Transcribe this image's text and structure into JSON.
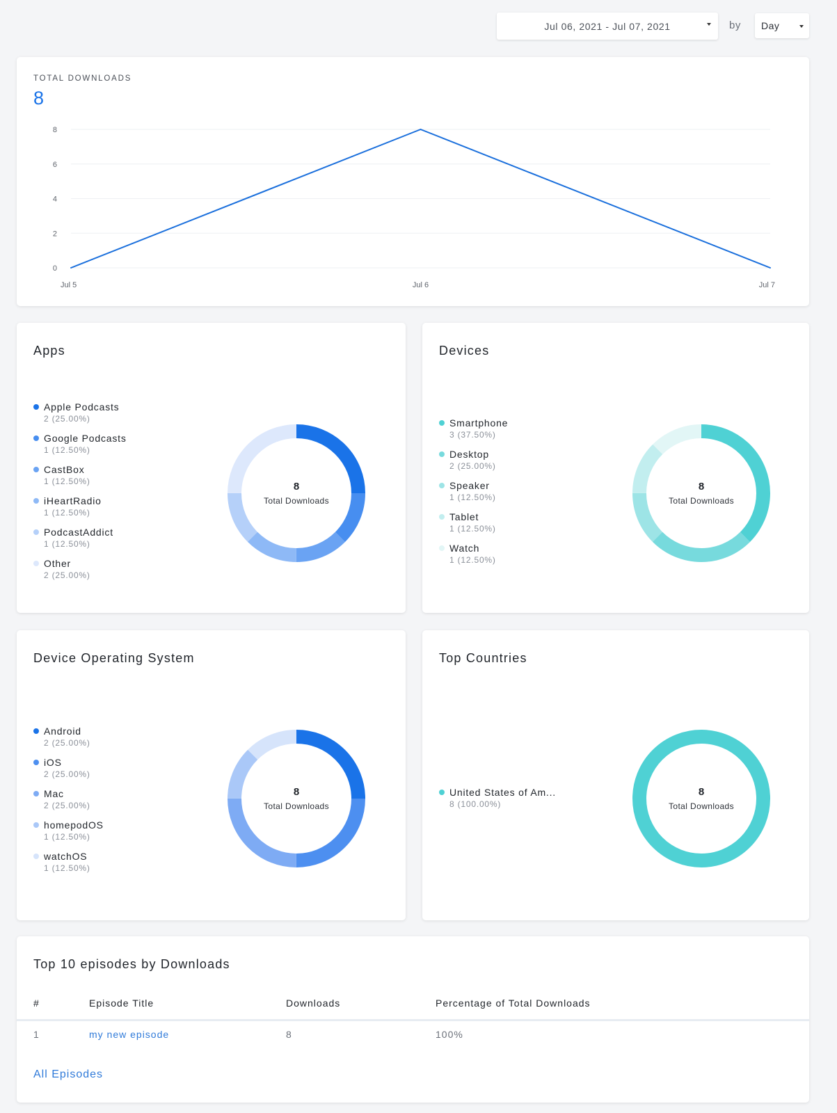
{
  "toolbar": {
    "date_range": "Jul 06, 2021 - Jul 07, 2021",
    "by_label": "by",
    "interval_value": "Day"
  },
  "total_downloads": {
    "label": "TOTAL DOWNLOADS",
    "value": "8"
  },
  "chart_data": {
    "type": "line",
    "title": "",
    "categories": [
      "Jul 5",
      "Jul 6",
      "Jul 7"
    ],
    "series": [
      {
        "values": [
          0,
          8,
          0
        ]
      }
    ],
    "xlabel": "",
    "ylabel": "",
    "ylim": [
      0,
      8
    ],
    "yticks": [
      0,
      2,
      4,
      6,
      8
    ],
    "grid": true,
    "color": "#1a6fdc"
  },
  "apps": {
    "title": "Apps",
    "total": "8",
    "total_label": "Total Downloads",
    "items": [
      {
        "name": "Apple Podcasts",
        "value": "2 (25.00%)",
        "count": 2,
        "color": "#1a73e8"
      },
      {
        "name": "Google Podcasts",
        "value": "1 (12.50%)",
        "count": 1,
        "color": "#478ef0"
      },
      {
        "name": "CastBox",
        "value": "1 (12.50%)",
        "count": 1,
        "color": "#6aa3f3"
      },
      {
        "name": "iHeartRadio",
        "value": "1 (12.50%)",
        "count": 1,
        "color": "#8eb9f6"
      },
      {
        "name": "PodcastAddict",
        "value": "1 (12.50%)",
        "count": 1,
        "color": "#b5d0f9"
      },
      {
        "name": "Other",
        "value": "2 (25.00%)",
        "count": 2,
        "color": "#dde8fc"
      }
    ]
  },
  "devices": {
    "title": "Devices",
    "total": "8",
    "total_label": "Total Downloads",
    "items": [
      {
        "name": "Smartphone",
        "value": "3 (37.50%)",
        "count": 3,
        "color": "#4fd1d4"
      },
      {
        "name": "Desktop",
        "value": "2 (25.00%)",
        "count": 2,
        "color": "#77dadd"
      },
      {
        "name": "Speaker",
        "value": "1 (12.50%)",
        "count": 1,
        "color": "#9de4e6"
      },
      {
        "name": "Tablet",
        "value": "1 (12.50%)",
        "count": 1,
        "color": "#c2eeef"
      },
      {
        "name": "Watch",
        "value": "1 (12.50%)",
        "count": 1,
        "color": "#e2f6f6"
      }
    ]
  },
  "os": {
    "title": "Device Operating System",
    "total": "8",
    "total_label": "Total Downloads",
    "items": [
      {
        "name": "Android",
        "value": "2 (25.00%)",
        "count": 2,
        "color": "#1a73e8"
      },
      {
        "name": "iOS",
        "value": "2 (25.00%)",
        "count": 2,
        "color": "#4d8ff0"
      },
      {
        "name": "Mac",
        "value": "2 (25.00%)",
        "count": 2,
        "color": "#7eabf4"
      },
      {
        "name": "homepodOS",
        "value": "1 (12.50%)",
        "count": 1,
        "color": "#aac8f8"
      },
      {
        "name": "watchOS",
        "value": "1 (12.50%)",
        "count": 1,
        "color": "#d6e4fb"
      }
    ]
  },
  "countries": {
    "title": "Top Countries",
    "total": "8",
    "total_label": "Total Downloads",
    "items": [
      {
        "name": "United States of Am...",
        "value": "8 (100.00%)",
        "count": 8,
        "color": "#4fd1d4"
      }
    ]
  },
  "episodes": {
    "title": "Top 10 episodes by Downloads",
    "columns": [
      "#",
      "Episode Title",
      "Downloads",
      "Percentage of Total Downloads"
    ],
    "rows": [
      {
        "rank": "1",
        "title": "my new episode",
        "downloads": "8",
        "percentage": "100%"
      }
    ],
    "all_link": "All Episodes"
  }
}
